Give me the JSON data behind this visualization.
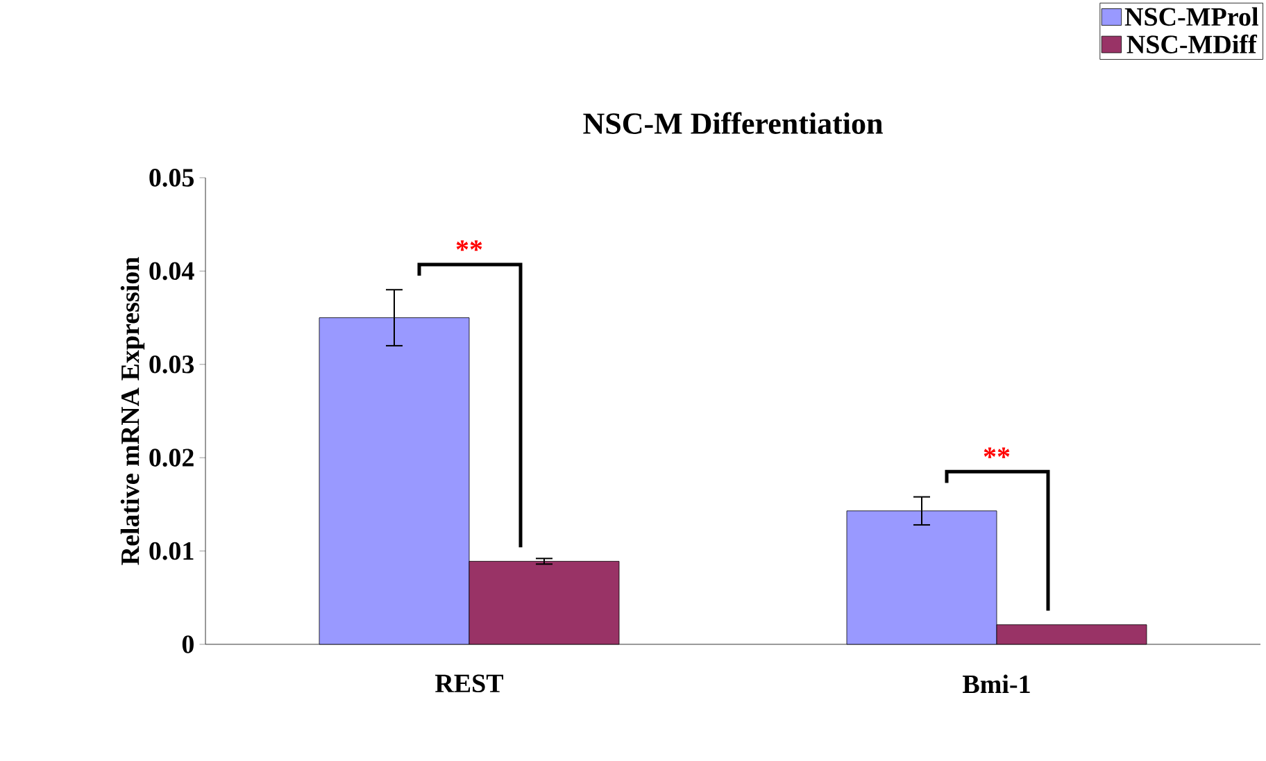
{
  "chart_data": {
    "type": "bar",
    "title": "NSC-M Differentiation",
    "ylabel": "Relative mRNA Expression",
    "categories": [
      "REST",
      "Bmi-1"
    ],
    "series": [
      {
        "name": "NSC-MProl",
        "color": "#9999ff",
        "values": [
          0.035,
          0.0143
        ],
        "errors": [
          0.003,
          0.0015
        ]
      },
      {
        "name": "NSC-MDiff",
        "color": "#993366",
        "values": [
          0.0089,
          0.0021
        ],
        "errors": [
          0.0003,
          null
        ]
      }
    ],
    "ylim": [
      0,
      0.05
    ],
    "yticks": [
      0,
      0.01,
      0.02,
      0.03,
      0.04,
      0.05
    ],
    "grid": false,
    "legend": "top right",
    "annotations": [
      "**",
      "**"
    ]
  }
}
